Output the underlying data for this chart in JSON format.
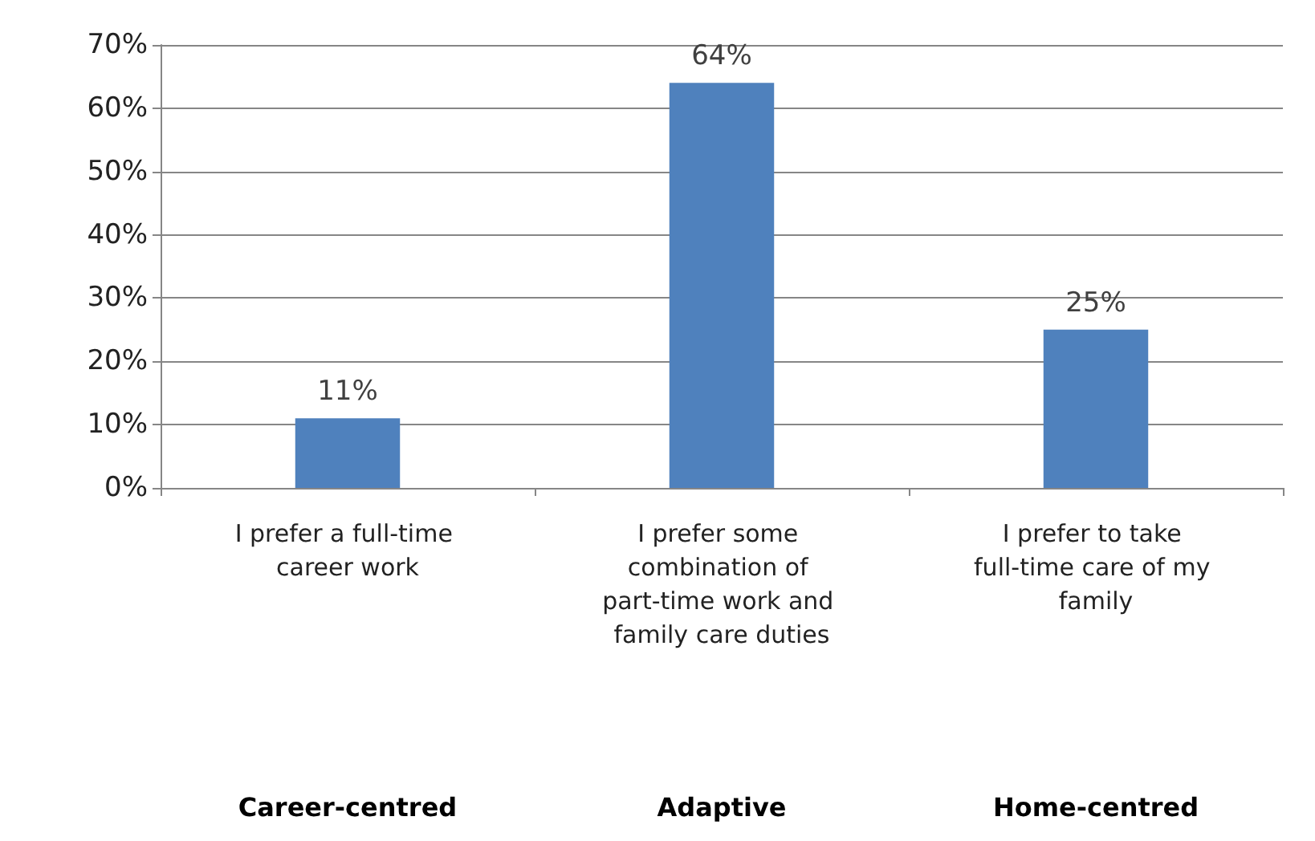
{
  "chart_data": {
    "type": "bar",
    "categories": [
      "I prefer a full-time career work",
      "I prefer some combination of part-time work and family care duties",
      "I prefer to take full-time care of my family"
    ],
    "values": [
      11,
      64,
      25
    ],
    "color": "#4f81bd",
    "ylim": [
      0,
      70
    ],
    "yticks": [
      {
        "value": 0,
        "label": "0%"
      },
      {
        "value": 10,
        "label": "10%"
      },
      {
        "value": 20,
        "label": "20%"
      },
      {
        "value": 30,
        "label": "30%"
      },
      {
        "value": 40,
        "label": "40%"
      },
      {
        "value": 50,
        "label": "50%"
      },
      {
        "value": 60,
        "label": "60%"
      },
      {
        "value": 70,
        "label": "70%"
      }
    ],
    "value_labels": [
      "11%",
      "64%",
      "25%"
    ],
    "grid": "y",
    "annotations": [
      "Career-centred",
      "Adaptive",
      "Home-centred"
    ]
  }
}
